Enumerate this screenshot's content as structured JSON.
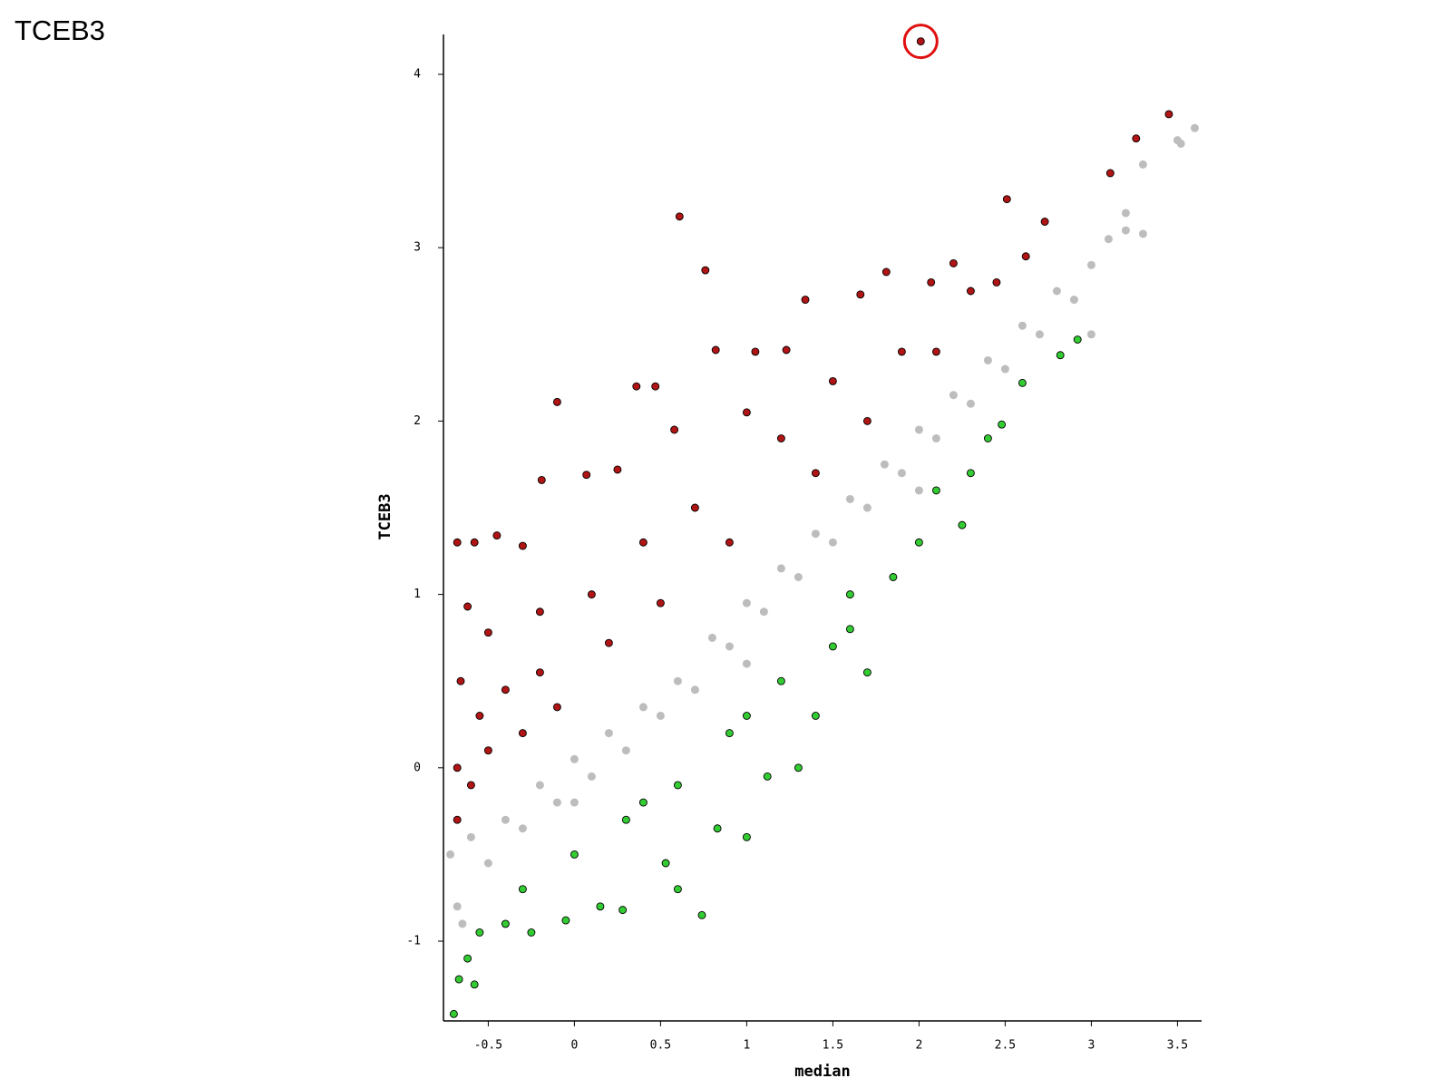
{
  "page_title": "TCEB3",
  "chart_data": {
    "type": "scatter",
    "xlabel": "median",
    "ylabel": "TCEB3",
    "xlim": [
      -0.76,
      3.64
    ],
    "ylim": [
      -1.46,
      4.23
    ],
    "xticks": [
      -0.5,
      0,
      0.5,
      1,
      1.5,
      2,
      2.5,
      3,
      3.5
    ],
    "yticks": [
      -1,
      0,
      1,
      2,
      3,
      4
    ],
    "highlight_point": {
      "series": 1,
      "index": 0,
      "color": "#e01010"
    },
    "series": [
      {
        "color": "#bdbdbd",
        "x": [
          -0.72,
          -0.68,
          -0.6,
          -0.5,
          -0.4,
          -0.3,
          -0.2,
          -0.1,
          0,
          0.1,
          0.2,
          0.3,
          0.4,
          0.5,
          0.6,
          0.7,
          0.8,
          0.9,
          1.0,
          1.1,
          1.2,
          1.3,
          1.4,
          1.5,
          1.6,
          1.7,
          1.8,
          1.9,
          2.0,
          2.1,
          2.2,
          2.3,
          2.4,
          2.5,
          2.6,
          2.7,
          2.8,
          2.9,
          3.0,
          3.1,
          3.2,
          3.3,
          3.5,
          3.6,
          3.52,
          3.3,
          3.2,
          -0.65,
          0.0,
          1.0,
          2.0,
          3.0
        ],
        "values": [
          -0.5,
          -0.8,
          -0.4,
          -0.55,
          -0.3,
          -0.35,
          -0.1,
          -0.2,
          0.05,
          -0.05,
          0.2,
          0.1,
          0.35,
          0.3,
          0.5,
          0.45,
          0.75,
          0.7,
          0.95,
          0.9,
          1.15,
          1.1,
          1.35,
          1.3,
          1.55,
          1.5,
          1.75,
          1.7,
          1.95,
          1.9,
          2.15,
          2.1,
          2.35,
          2.3,
          2.55,
          2.5,
          2.75,
          2.7,
          2.9,
          3.05,
          3.1,
          3.48,
          3.62,
          3.69,
          3.6,
          3.08,
          3.2,
          -0.9,
          -0.2,
          0.6,
          1.6,
          2.5
        ]
      },
      {
        "color": "#b01414",
        "x": [
          2.01,
          3.45,
          3.26,
          3.11,
          2.51,
          2.73,
          2.62,
          0.61,
          0.76,
          1.34,
          1.81,
          2.07,
          2.2,
          1.66,
          1.05,
          0.82,
          1.23,
          -0.1,
          0.36,
          0.47,
          0.07,
          -0.19,
          0.25,
          0.58,
          1.0,
          1.5,
          1.9,
          2.3,
          -0.68,
          -0.58,
          -0.45,
          -0.3,
          -0.62,
          -0.5,
          -0.2,
          0.1,
          0.4,
          0.7,
          1.2,
          -0.66,
          -0.55,
          -0.4,
          -0.2,
          0.2,
          0.5,
          0.9,
          -0.68,
          -0.6,
          -0.5,
          -0.3,
          -0.68,
          -0.1,
          1.4,
          1.7,
          2.1,
          2.45
        ],
        "values": [
          4.19,
          3.77,
          3.63,
          3.43,
          3.28,
          3.15,
          2.95,
          3.18,
          2.87,
          2.7,
          2.86,
          2.8,
          2.91,
          2.73,
          2.4,
          2.41,
          2.41,
          2.11,
          2.2,
          2.2,
          1.69,
          1.66,
          1.72,
          1.95,
          2.05,
          2.23,
          2.4,
          2.75,
          1.3,
          1.3,
          1.34,
          1.28,
          0.93,
          0.78,
          0.9,
          1.0,
          1.3,
          1.5,
          1.9,
          0.5,
          0.3,
          0.45,
          0.55,
          0.72,
          0.95,
          1.3,
          0.0,
          -0.1,
          0.1,
          0.2,
          -0.3,
          0.35,
          1.7,
          2.0,
          2.4,
          2.8
        ]
      },
      {
        "color": "#33cc33",
        "x": [
          -0.7,
          -0.67,
          -0.58,
          -0.62,
          -0.55,
          -0.4,
          -0.25,
          -0.05,
          0.15,
          0.28,
          0.6,
          0.74,
          0.53,
          0.83,
          1.12,
          1.0,
          0.3,
          0.0,
          -0.3,
          0.6,
          0.9,
          1.2,
          1.4,
          1.5,
          1.6,
          1.85,
          2.0,
          2.25,
          2.3,
          2.48,
          2.6,
          2.82,
          2.92,
          1.3,
          1.7,
          2.1,
          2.4,
          0.4,
          1.0,
          1.6
        ],
        "values": [
          -1.42,
          -1.22,
          -1.25,
          -1.1,
          -0.95,
          -0.9,
          -0.95,
          -0.88,
          -0.8,
          -0.82,
          -0.7,
          -0.85,
          -0.55,
          -0.35,
          -0.05,
          -0.4,
          -0.3,
          -0.5,
          -0.7,
          -0.1,
          0.2,
          0.5,
          0.3,
          0.7,
          0.8,
          1.1,
          1.3,
          1.4,
          1.7,
          1.98,
          2.22,
          2.38,
          2.47,
          0.0,
          0.55,
          1.6,
          1.9,
          -0.2,
          0.3,
          1.0
        ]
      }
    ]
  }
}
